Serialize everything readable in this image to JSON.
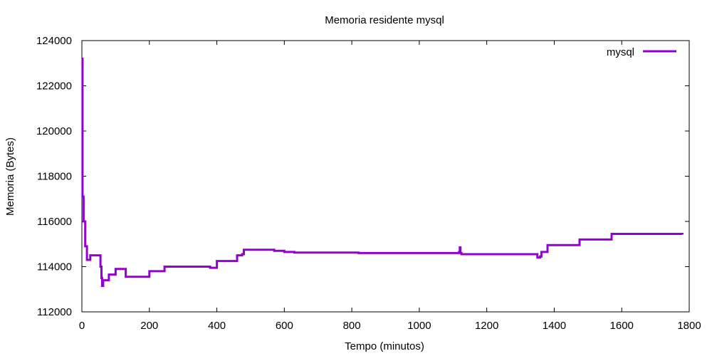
{
  "chart_data": {
    "type": "line",
    "title": "Memoria residente mysql",
    "xlabel": "Tempo (minutos)",
    "ylabel": "Memoria (Bytes)",
    "xlim": [
      0,
      1800
    ],
    "ylim": [
      112000,
      124000
    ],
    "x_ticks": [
      0,
      200,
      400,
      600,
      800,
      1000,
      1200,
      1400,
      1600,
      1800
    ],
    "y_ticks": [
      112000,
      114000,
      116000,
      118000,
      120000,
      122000,
      124000
    ],
    "grid": false,
    "legend_position": "top-right",
    "series": [
      {
        "name": "mysql",
        "color": "#9400d3",
        "step": true,
        "x": [
          0,
          2,
          5,
          10,
          15,
          25,
          35,
          55,
          58,
          60,
          63,
          65,
          80,
          100,
          130,
          200,
          245,
          380,
          400,
          460,
          475,
          480,
          570,
          600,
          630,
          820,
          1118,
          1120,
          1122,
          1125,
          1350,
          1358,
          1362,
          1380,
          1475,
          1570,
          1760,
          1780
        ],
        "y": [
          123200,
          117100,
          116000,
          114900,
          114300,
          114500,
          114500,
          114000,
          113500,
          113150,
          113400,
          113400,
          113650,
          113900,
          113550,
          113800,
          114000,
          113950,
          114250,
          114500,
          114550,
          114750,
          114700,
          114650,
          114620,
          114600,
          114650,
          114850,
          114600,
          114550,
          114400,
          114450,
          114650,
          114950,
          115200,
          115450,
          115450,
          115420
        ]
      }
    ]
  }
}
